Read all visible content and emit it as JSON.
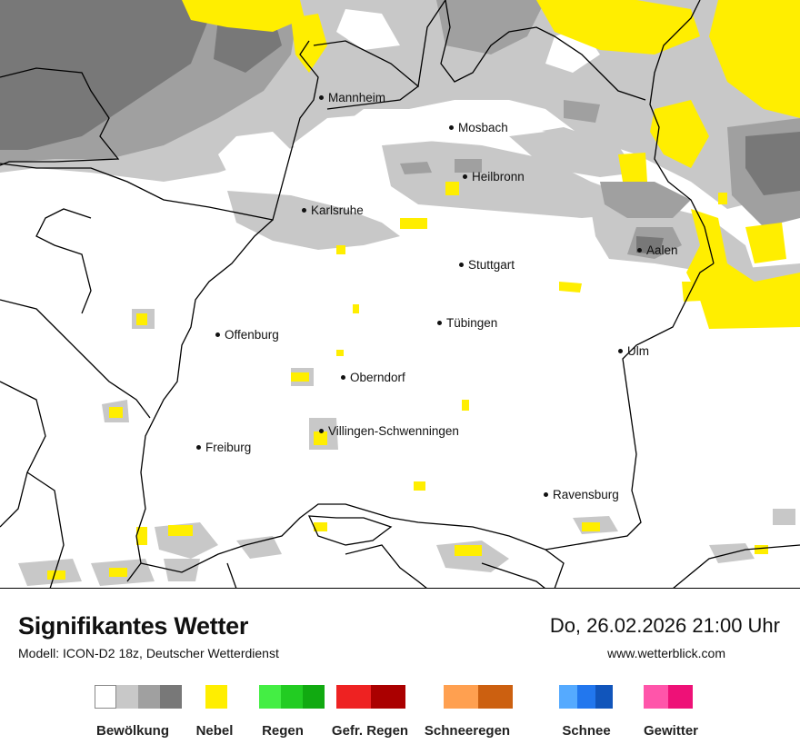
{
  "map": {
    "cities": [
      {
        "name": "Mannheim"
      },
      {
        "name": "Mosbach"
      },
      {
        "name": "Heilbronn"
      },
      {
        "name": "Karlsruhe"
      },
      {
        "name": "Aalen"
      },
      {
        "name": "Stuttgart"
      },
      {
        "name": "Tübingen"
      },
      {
        "name": "Offenburg"
      },
      {
        "name": "Ulm"
      },
      {
        "name": "Oberndorf"
      },
      {
        "name": "Villingen-Schwenningen"
      },
      {
        "name": "Freiburg"
      },
      {
        "name": "Ravensburg"
      }
    ],
    "colors": {
      "cloud_light": "#c8c8c8",
      "cloud_medium": "#a0a0a0",
      "cloud_dark": "#787878",
      "fog": "#ffee00",
      "border": "#000000"
    }
  },
  "footer": {
    "title": "Signifikantes Wetter",
    "subtitle": "Modell: ICON-D2 18z, Deutscher Wetterdienst",
    "datetime": "Do, 26.02.2026 21:00 Uhr",
    "website": "www.wetterblick.com"
  },
  "legend": [
    {
      "label": "Bewölkung",
      "colors": [
        "#ffffff",
        "#c8c8c8",
        "#a0a0a0",
        "#787878"
      ]
    },
    {
      "label": "Nebel",
      "colors": [
        "#ffee00"
      ]
    },
    {
      "label": "Regen",
      "colors": [
        "#44ee44",
        "#22cc22",
        "#11aa11"
      ]
    },
    {
      "label": "Gefr. Regen",
      "colors": [
        "#ee2222",
        "#aa0000"
      ]
    },
    {
      "label": "Schneeregen",
      "colors": [
        "#ffa050",
        "#cc6010"
      ]
    },
    {
      "label": "Schnee",
      "colors": [
        "#55aaff",
        "#2277ee",
        "#1155bb"
      ]
    },
    {
      "label": "Gewitter",
      "colors": [
        "#ff55aa",
        "#ee1177"
      ]
    }
  ]
}
